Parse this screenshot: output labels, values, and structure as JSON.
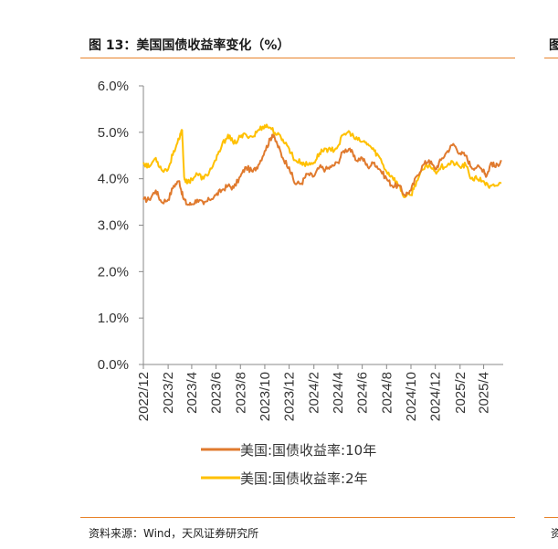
{
  "title": "图 13：美国国债收益率变化（%）",
  "right_title_fragment": "图",
  "source": "资料来源：Wind，天风证券研究所",
  "right_source_fragment": "资",
  "colors": {
    "accent": "#e8832a",
    "series_10y": "#e07a2e",
    "series_2y": "#ffc000"
  },
  "chart_data": {
    "type": "line",
    "title": "",
    "xlabel": "",
    "ylabel": "",
    "ylim": [
      0,
      6
    ],
    "yticks": [
      "0.0%",
      "1.0%",
      "2.0%",
      "3.0%",
      "4.0%",
      "5.0%",
      "6.0%"
    ],
    "x_start": "2022-12",
    "x_end": "2025-05",
    "x_ticks": [
      "2022/12",
      "2023/2",
      "2023/4",
      "2023/6",
      "2023/8",
      "2023/10",
      "2023/12",
      "2024/2",
      "2024/4",
      "2024/6",
      "2024/8",
      "2024/10",
      "2024/12",
      "2025/2",
      "2025/4"
    ],
    "legend_position": "bottom",
    "grid": false,
    "series": [
      {
        "name": "美国:国债收益率:10年",
        "x": [
          "2022-12-01",
          "2022-12-15",
          "2023-01-01",
          "2023-01-15",
          "2023-02-01",
          "2023-02-15",
          "2023-03-01",
          "2023-03-10",
          "2023-03-20",
          "2023-04-01",
          "2023-04-15",
          "2023-05-01",
          "2023-05-15",
          "2023-06-01",
          "2023-06-15",
          "2023-07-01",
          "2023-07-15",
          "2023-08-01",
          "2023-08-15",
          "2023-09-01",
          "2023-09-15",
          "2023-10-01",
          "2023-10-15",
          "2023-10-20",
          "2023-11-01",
          "2023-11-15",
          "2023-12-01",
          "2023-12-15",
          "2024-01-01",
          "2024-01-15",
          "2024-02-01",
          "2024-02-15",
          "2024-03-01",
          "2024-03-15",
          "2024-04-01",
          "2024-04-15",
          "2024-05-01",
          "2024-05-15",
          "2024-06-01",
          "2024-06-15",
          "2024-07-01",
          "2024-07-15",
          "2024-08-01",
          "2024-08-15",
          "2024-09-01",
          "2024-09-15",
          "2024-10-01",
          "2024-10-15",
          "2024-11-01",
          "2024-11-15",
          "2024-12-01",
          "2024-12-15",
          "2025-01-01",
          "2025-01-15",
          "2025-02-01",
          "2025-02-15",
          "2025-03-01",
          "2025-03-15",
          "2025-04-01",
          "2025-04-08",
          "2025-04-20",
          "2025-05-01",
          "2025-05-15"
        ],
        "values": [
          3.55,
          3.55,
          3.75,
          3.5,
          3.55,
          3.85,
          3.95,
          3.6,
          3.45,
          3.45,
          3.55,
          3.45,
          3.55,
          3.65,
          3.75,
          3.85,
          3.8,
          4.05,
          4.25,
          4.15,
          4.3,
          4.6,
          4.85,
          4.95,
          4.75,
          4.45,
          4.25,
          3.9,
          3.9,
          4.1,
          4.05,
          4.25,
          4.2,
          4.25,
          4.35,
          4.6,
          4.65,
          4.4,
          4.45,
          4.25,
          4.35,
          4.2,
          4.0,
          3.85,
          3.85,
          3.65,
          3.75,
          4.05,
          4.3,
          4.4,
          4.2,
          4.4,
          4.6,
          4.75,
          4.55,
          4.5,
          4.25,
          4.25,
          4.2,
          4.05,
          4.35,
          4.25,
          4.4
        ]
      },
      {
        "name": "美国:国债收益率:2年",
        "x": [
          "2022-12-01",
          "2022-12-15",
          "2023-01-01",
          "2023-01-15",
          "2023-02-01",
          "2023-02-15",
          "2023-03-01",
          "2023-03-08",
          "2023-03-13",
          "2023-03-20",
          "2023-04-01",
          "2023-04-15",
          "2023-05-01",
          "2023-05-15",
          "2023-06-01",
          "2023-06-15",
          "2023-07-01",
          "2023-07-15",
          "2023-08-01",
          "2023-08-15",
          "2023-09-01",
          "2023-09-15",
          "2023-10-01",
          "2023-10-15",
          "2023-11-01",
          "2023-11-15",
          "2023-12-01",
          "2023-12-15",
          "2024-01-01",
          "2024-01-15",
          "2024-02-01",
          "2024-02-15",
          "2024-03-01",
          "2024-03-15",
          "2024-04-01",
          "2024-04-15",
          "2024-05-01",
          "2024-05-15",
          "2024-06-01",
          "2024-06-15",
          "2024-07-01",
          "2024-07-15",
          "2024-08-01",
          "2024-08-15",
          "2024-09-01",
          "2024-09-15",
          "2024-10-01",
          "2024-10-15",
          "2024-11-01",
          "2024-11-15",
          "2024-12-01",
          "2024-12-15",
          "2025-01-01",
          "2025-01-15",
          "2025-02-01",
          "2025-02-15",
          "2025-03-01",
          "2025-03-15",
          "2025-04-01",
          "2025-04-15",
          "2025-05-01",
          "2025-05-15"
        ],
        "values": [
          4.35,
          4.25,
          4.45,
          4.2,
          4.2,
          4.6,
          4.85,
          5.05,
          4.05,
          3.9,
          4.0,
          4.1,
          4.0,
          4.15,
          4.4,
          4.7,
          4.95,
          4.75,
          4.9,
          4.95,
          4.9,
          5.05,
          5.15,
          5.1,
          4.95,
          4.85,
          4.65,
          4.4,
          4.35,
          4.3,
          4.35,
          4.55,
          4.65,
          4.6,
          4.7,
          4.95,
          5.0,
          4.85,
          4.8,
          4.75,
          4.6,
          4.45,
          4.15,
          4.05,
          3.85,
          3.6,
          3.65,
          3.95,
          4.2,
          4.3,
          4.15,
          4.25,
          4.3,
          4.35,
          4.25,
          4.3,
          4.0,
          4.0,
          3.95,
          3.8,
          3.85,
          3.9
        ]
      }
    ]
  }
}
